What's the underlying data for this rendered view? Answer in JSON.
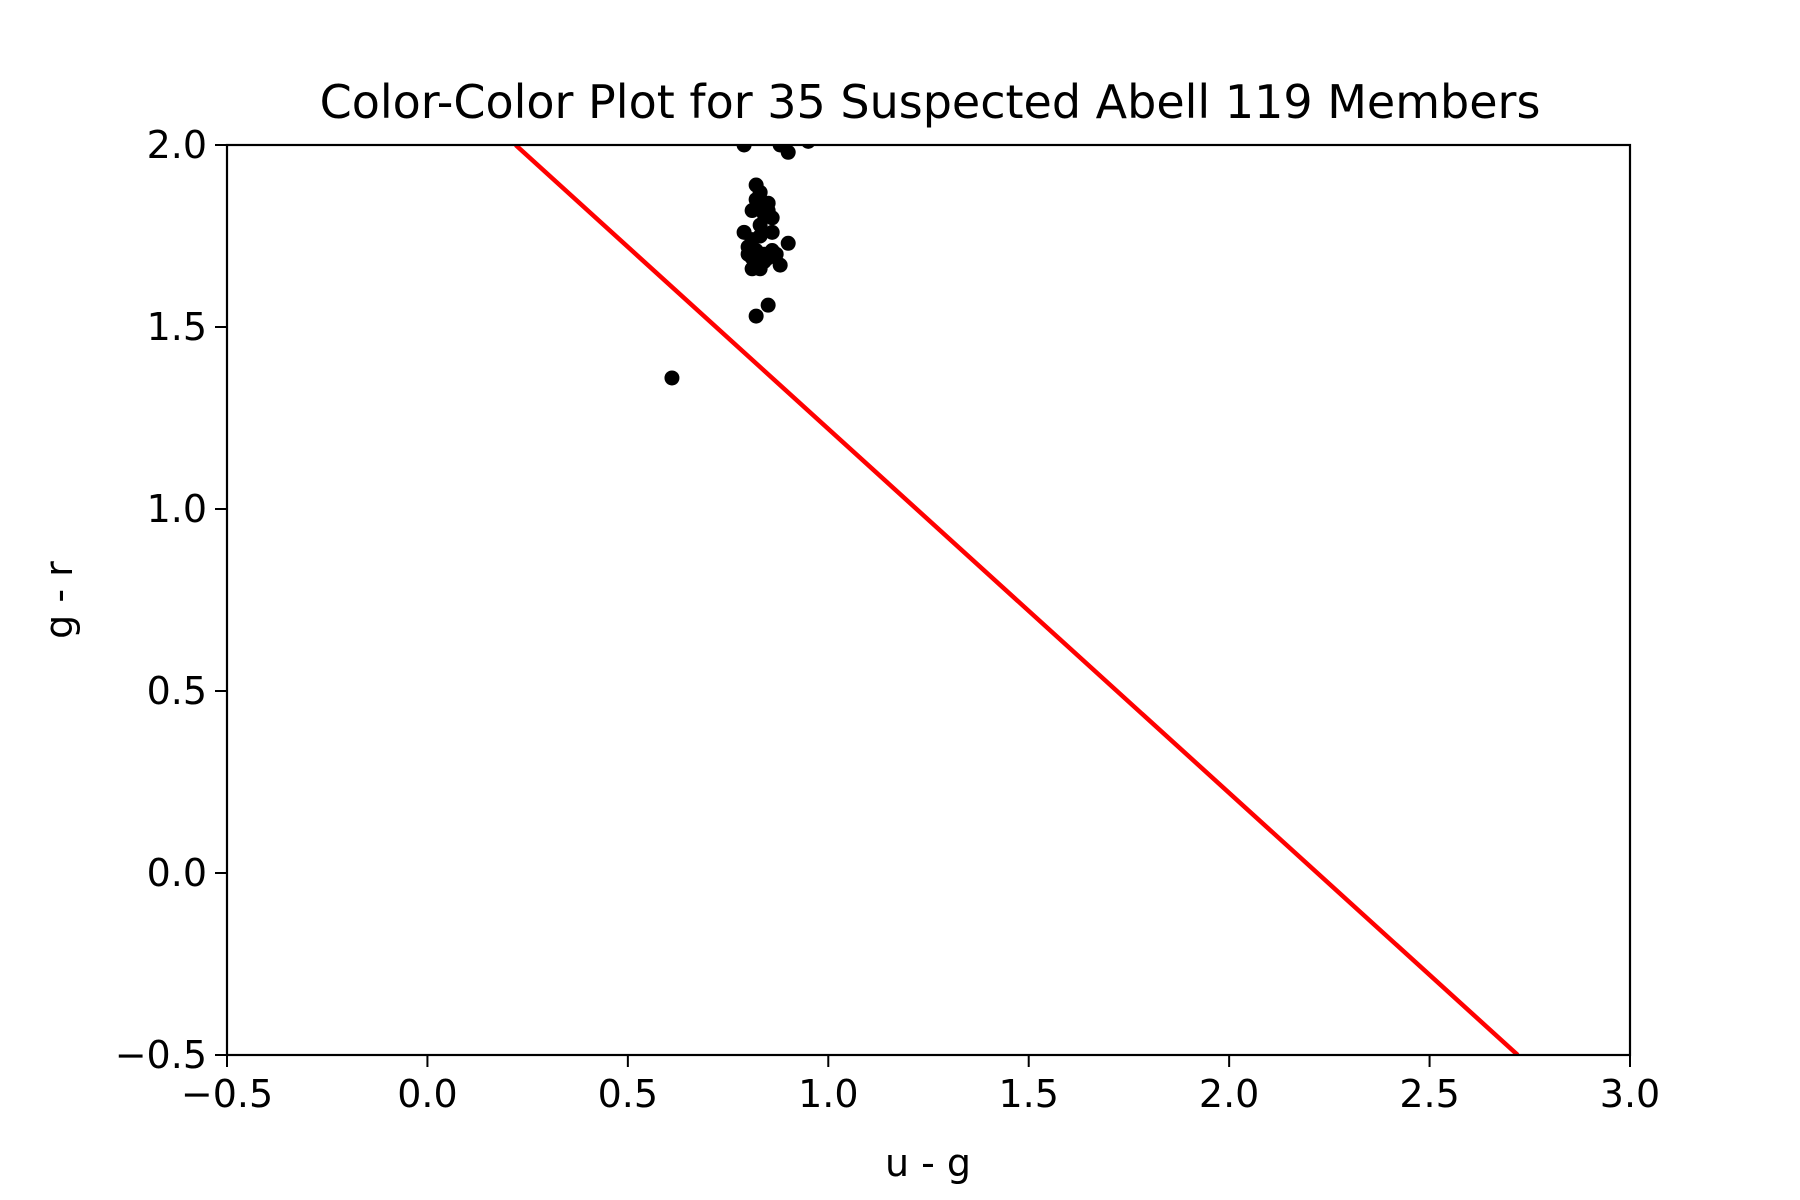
{
  "chart_data": {
    "type": "scatter",
    "title": "Color-Color Plot for 35 Suspected Abell 119 Members",
    "xlabel": "u - g",
    "ylabel": "g - r",
    "xlim": [
      -0.5,
      3.0
    ],
    "ylim": [
      -0.5,
      2.0
    ],
    "xticks": [
      -0.5,
      0.0,
      0.5,
      1.0,
      1.5,
      2.0,
      2.5,
      3.0
    ],
    "yticks": [
      -0.5,
      0.0,
      0.5,
      1.0,
      1.5,
      2.0
    ],
    "xtick_labels": [
      "−0.5",
      "0.0",
      "0.5",
      "1.0",
      "1.5",
      "2.0",
      "2.5",
      "3.0"
    ],
    "ytick_labels": [
      "−0.5",
      "0.0",
      "0.5",
      "1.0",
      "1.5",
      "2.0"
    ],
    "grid": false,
    "series": [
      {
        "type": "scatter",
        "color": "#000000",
        "x": [
          0.61,
          0.79,
          0.88,
          0.9,
          0.95,
          0.82,
          0.83,
          0.85,
          0.81,
          0.84,
          0.86,
          0.79,
          0.83,
          0.81,
          0.9,
          0.8,
          0.82,
          0.86,
          0.85,
          0.88,
          0.81,
          0.83,
          0.84,
          0.82,
          0.85,
          0.82,
          0.85,
          0.87,
          0.8,
          0.84,
          0.83,
          0.82,
          0.81,
          0.84,
          0.86
        ],
        "y": [
          1.36,
          2.0,
          2.0,
          1.98,
          2.01,
          1.89,
          1.87,
          1.84,
          1.82,
          1.83,
          1.8,
          1.76,
          1.75,
          1.74,
          1.73,
          1.7,
          1.71,
          1.71,
          1.69,
          1.67,
          1.66,
          1.66,
          1.68,
          1.67,
          1.56,
          1.53,
          1.82,
          1.7,
          1.72,
          1.7,
          1.78,
          1.85,
          1.69,
          1.81,
          1.76
        ]
      },
      {
        "type": "line",
        "color": "#ff0000",
        "x": [
          0.22,
          2.72
        ],
        "y": [
          2.0,
          -0.5
        ]
      }
    ]
  }
}
